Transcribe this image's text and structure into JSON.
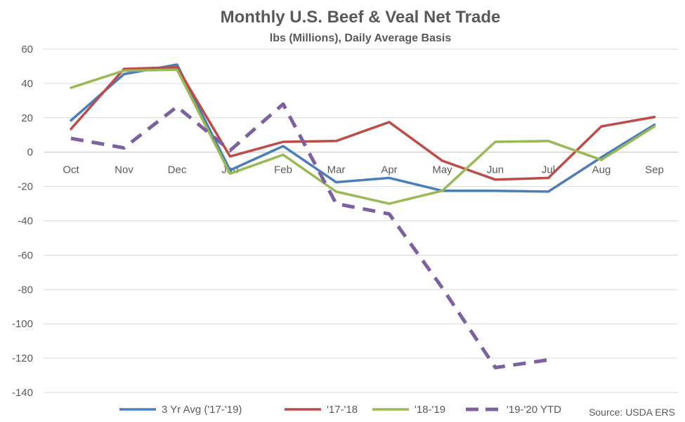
{
  "chart_data": {
    "type": "line",
    "title": "Monthly U.S. Beef & Veal Net Trade",
    "subtitle": "lbs (Millions), Daily Average Basis",
    "source": "Source: USDA ERS",
    "categories": [
      "Oct",
      "Nov",
      "Dec",
      "Jan",
      "Feb",
      "Mar",
      "Apr",
      "May",
      "Jun",
      "Jul",
      "Aug",
      "Sep"
    ],
    "y_ticks": [
      60,
      40,
      20,
      0,
      -20,
      -40,
      -60,
      -80,
      -100,
      -120,
      -140
    ],
    "ylim": [
      -140,
      60
    ],
    "grid": true,
    "legend_position": "bottom",
    "series": [
      {
        "name": "3 Yr Avg ('17-'19)",
        "color": "#4a7ebb",
        "dash": false,
        "values": [
          18.5,
          45.5,
          51,
          -10.5,
          3.5,
          -17.5,
          -15,
          -22.5,
          -22.5,
          -23,
          -3,
          16
        ]
      },
      {
        "name": "'17-'18",
        "color": "#be4b48",
        "dash": false,
        "values": [
          13.5,
          48.5,
          49.5,
          -2.5,
          6,
          6.5,
          17.5,
          -5,
          -16,
          -15,
          15,
          20.5
        ]
      },
      {
        "name": "'18-'19",
        "color": "#98b954",
        "dash": false,
        "values": [
          37.5,
          47.5,
          48,
          -12.5,
          -1.5,
          -23,
          -30,
          -22.5,
          6,
          6.5,
          -4.5,
          15
        ]
      },
      {
        "name": "'19-'20 YTD",
        "color": "#7d60a0",
        "dash": true,
        "values": [
          8,
          2.5,
          26.5,
          1,
          28,
          -30,
          -36,
          -79,
          -125.5,
          -121,
          null,
          null
        ]
      }
    ]
  }
}
